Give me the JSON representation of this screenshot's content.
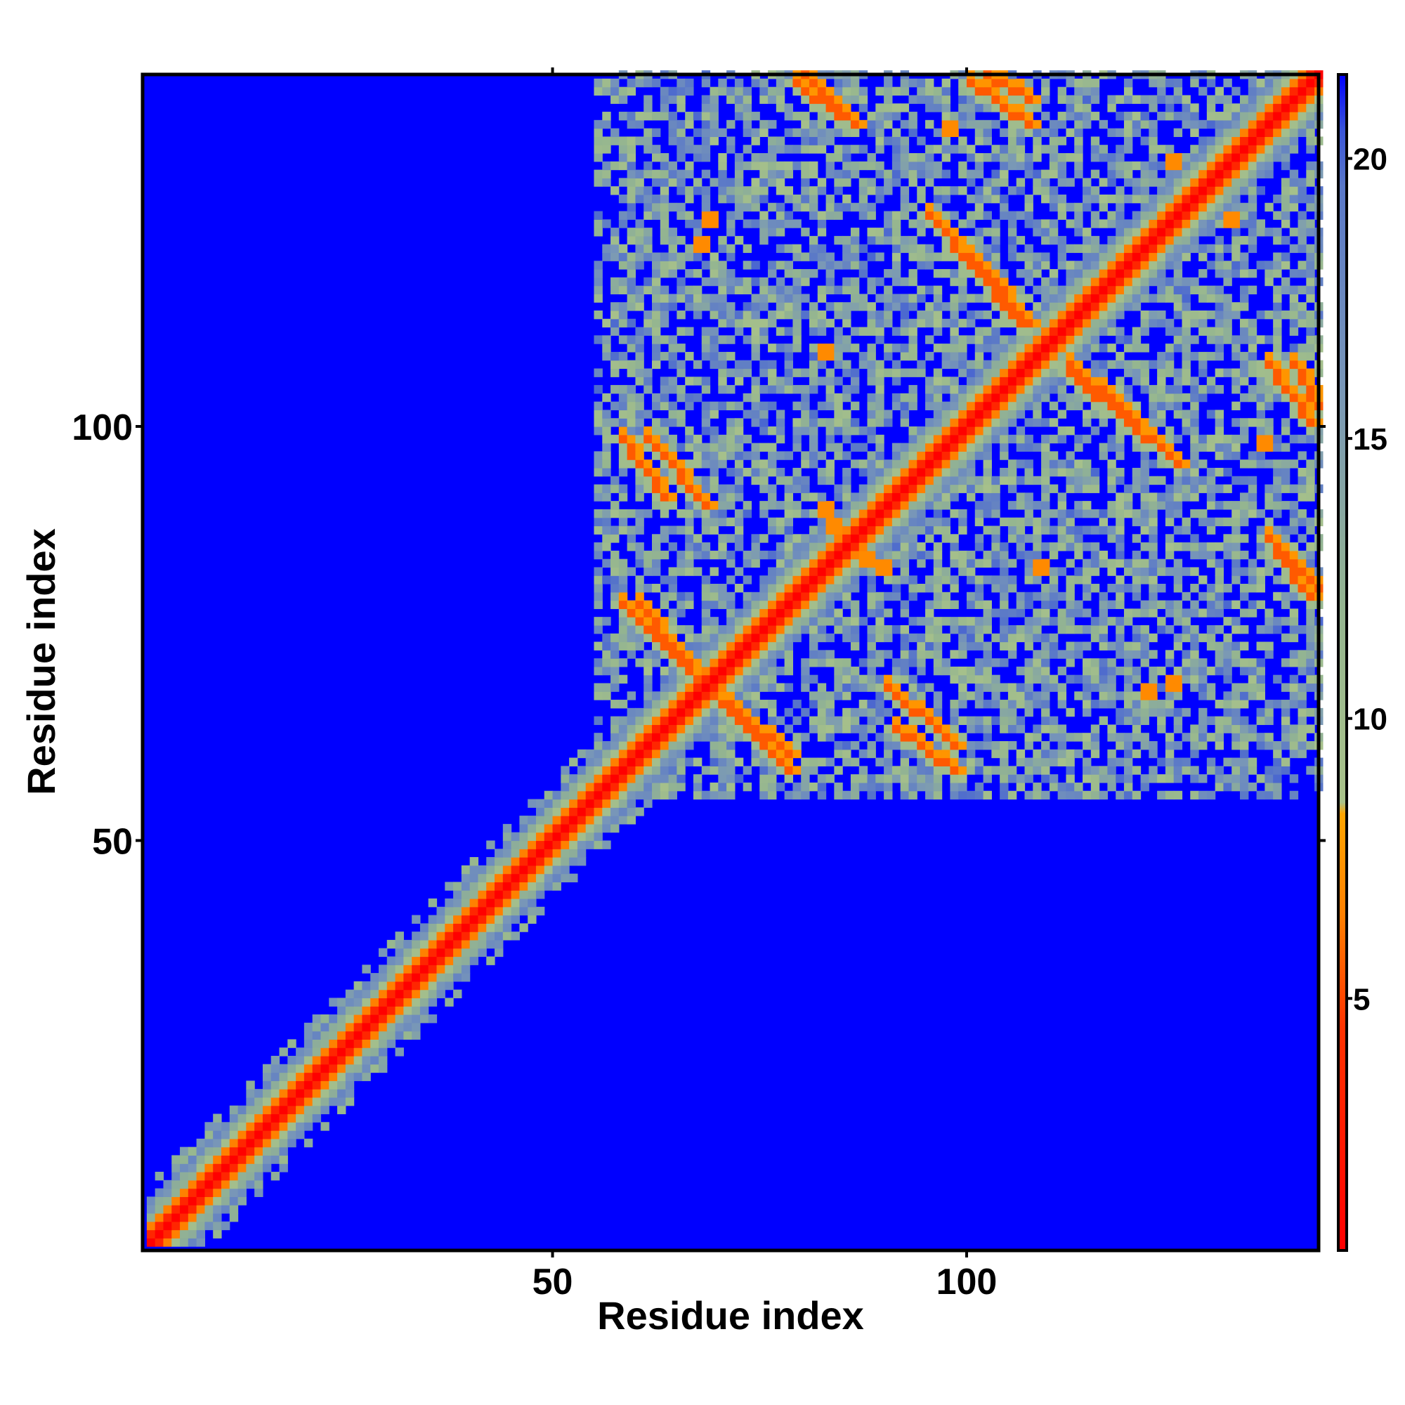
{
  "chart_data": {
    "type": "heatmap",
    "title": "",
    "xlabel": "Residue index",
    "ylabel": "Residue index",
    "n_residues": 142,
    "x_ticks": [
      50,
      100
    ],
    "y_ticks": [
      50,
      100
    ],
    "x_tick_labels": [
      "50",
      "100"
    ],
    "y_tick_labels": [
      "50",
      "100"
    ],
    "xlim": [
      1,
      142
    ],
    "ylim": [
      1,
      142
    ],
    "colorbar": {
      "ticks": [
        5,
        10,
        15,
        20
      ],
      "tick_labels": [
        "5",
        "10",
        "15",
        "20"
      ],
      "range": [
        0.5,
        21.5
      ],
      "stops": [
        {
          "value": 0.5,
          "color": "#ff0000"
        },
        {
          "value": 4.5,
          "color": "#ff3300"
        },
        {
          "value": 6.5,
          "color": "#ff8000"
        },
        {
          "value": 8.3,
          "color": "#ffa500"
        },
        {
          "value": 8.5,
          "color": "#a9c28a"
        },
        {
          "value": 12,
          "color": "#94b590"
        },
        {
          "value": 16,
          "color": "#7896b8"
        },
        {
          "value": 19.5,
          "color": "#5a78c8"
        },
        {
          "value": 20.5,
          "color": "#3a55d8"
        },
        {
          "value": 21.5,
          "color": "#0000ff"
        }
      ]
    },
    "background_color": "#0000ff",
    "structure": {
      "diagonal_band_values": [
        0.5,
        3.5,
        6.5,
        9.5,
        13,
        17
      ],
      "contact_region_start_residue": 55,
      "contact_density": 0.62,
      "off_diagonal_strands": [
        {
          "start": [
            80,
            142
          ],
          "end": [
            86,
            136
          ]
        },
        {
          "start": [
            100,
            141
          ],
          "end": [
            107,
            136
          ]
        },
        {
          "start": [
            95,
            125
          ],
          "end": [
            106,
            112
          ]
        },
        {
          "start": [
            61,
            98
          ],
          "end": [
            68,
            90
          ]
        },
        {
          "start": [
            60,
            78
          ],
          "end": [
            68,
            68
          ]
        },
        {
          "start": [
            70,
            66
          ],
          "end": [
            78,
            58
          ]
        },
        {
          "start": [
            91,
            63
          ],
          "end": [
            98,
            58
          ]
        },
        {
          "start": [
            112,
            107
          ],
          "end": [
            120,
            100
          ]
        },
        {
          "start": [
            139,
            107
          ],
          "end": [
            142,
            102
          ]
        },
        {
          "start": [
            137,
            84
          ],
          "end": [
            141,
            79
          ]
        }
      ],
      "hotspots": [
        [
          68,
          124
        ],
        [
          82,
          108
        ],
        [
          83,
          87
        ],
        [
          89,
          82
        ],
        [
          108,
          82
        ],
        [
          121,
          67
        ],
        [
          135,
          97
        ],
        [
          124,
          131
        ],
        [
          36,
          35
        ]
      ]
    }
  }
}
